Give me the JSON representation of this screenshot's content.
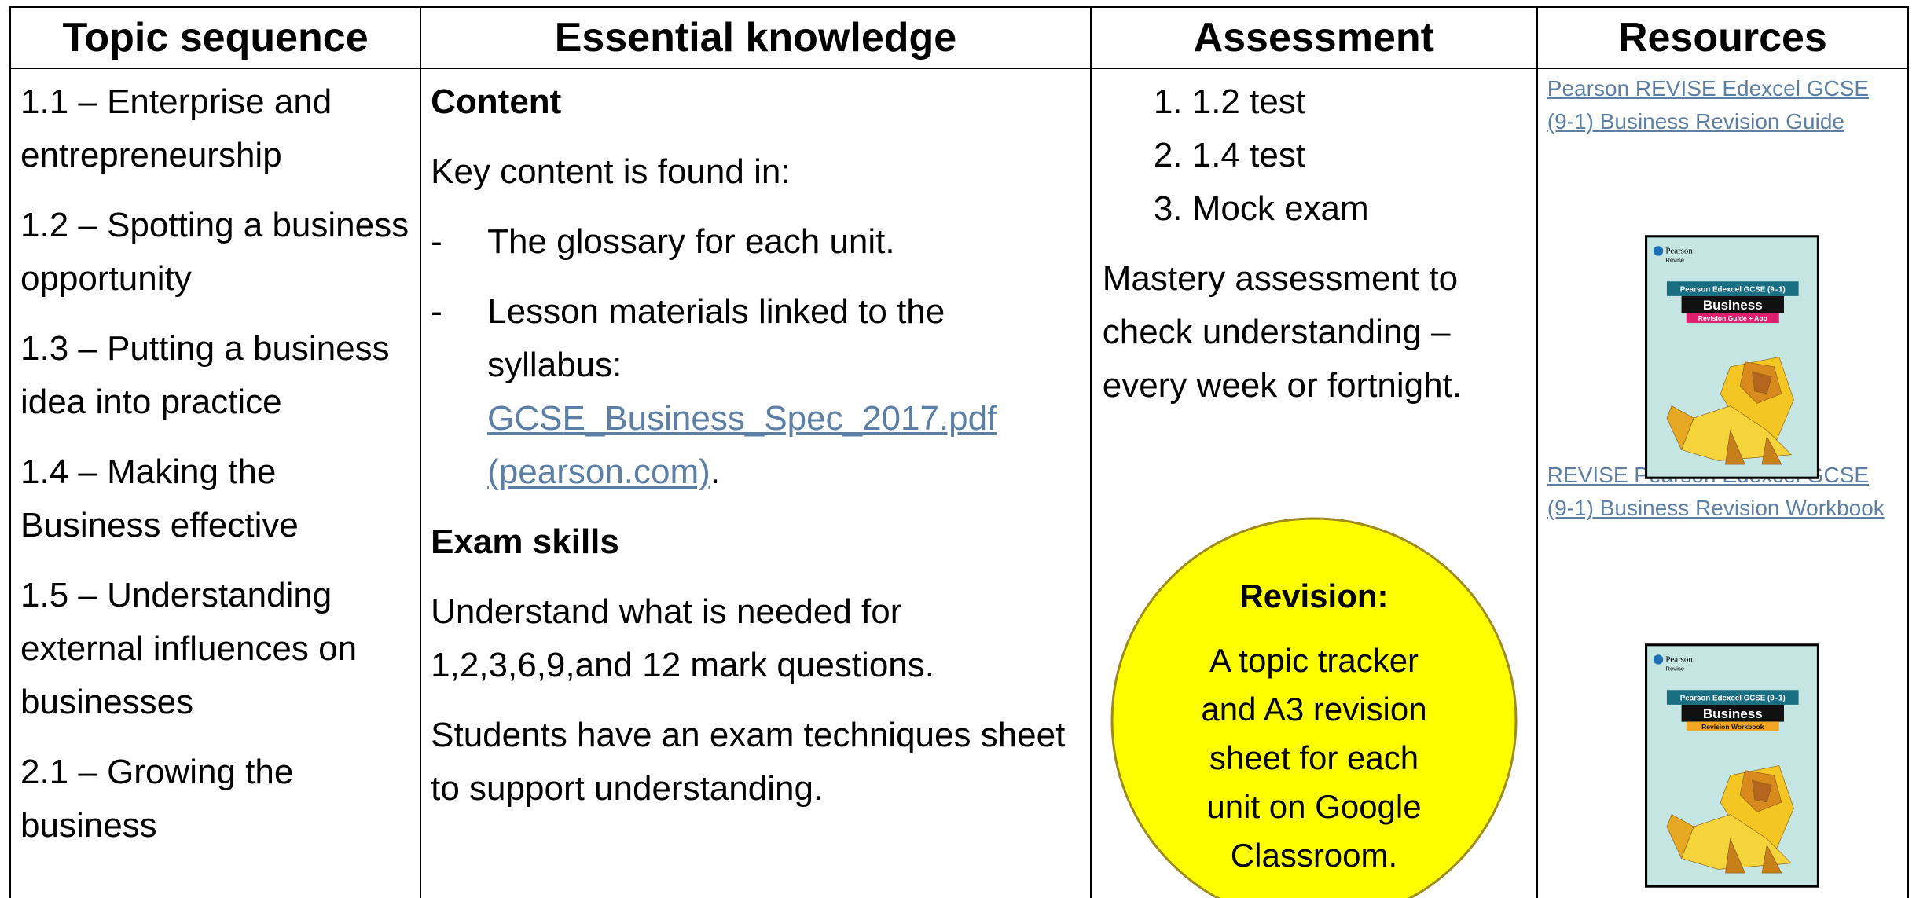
{
  "table": {
    "headers": [
      "Topic sequence",
      "Essential knowledge",
      "Assessment",
      "Resources"
    ],
    "topics": [
      "1.1 – Enterprise and entrepreneurship",
      "1.2 – Spotting a business opportunity",
      "1.3 – Putting a business idea into practice",
      "1.4 – Making the Business effective",
      "1.5 – Understanding external influences on businesses",
      "2.1 – Growing the business"
    ],
    "knowledge": {
      "content_heading": "Content",
      "intro": "Key content is found in:",
      "bullet_marker": "-",
      "bullets": [
        {
          "text": "The glossary for each unit."
        },
        {
          "text": "Lesson materials linked to the syllabus:",
          "link": "GCSE_Business_Spec_2017.pdf (pearson.com)",
          "after": "."
        }
      ],
      "exam_heading": "Exam skills",
      "exam_paragraphs": [
        "Understand what is needed for 1,2,3,6,9,and 12 mark questions.",
        "Students have an exam techniques sheet to support understanding."
      ]
    },
    "assessment": {
      "items": [
        "1.2 test",
        "1.4 test",
        "Mock exam"
      ],
      "mastery": "Mastery assessment to check understanding – every week or fortnight.",
      "revision": {
        "title": "Revision:",
        "text": "A topic tracker and A3 revision sheet for each unit on Google Classroom."
      }
    },
    "resources": [
      {
        "link": "Pearson REVISE Edexcel GCSE (9-1) Business Revision Guide",
        "cover": {
          "brand": "Pearson",
          "series": "Revise",
          "banner": "Pearson Edexcel GCSE (9–1)",
          "subject": "Business",
          "edition": "Revision Guide + App"
        }
      },
      {
        "link": "REVISE Pearson Edexcel GCSE (9-1) Business Revision Workbook",
        "cover": {
          "brand": "Pearson",
          "series": "Revise",
          "banner": "Pearson Edexcel GCSE (9–1)",
          "subject": "Business",
          "edition": "Revision Workbook"
        }
      }
    ]
  }
}
